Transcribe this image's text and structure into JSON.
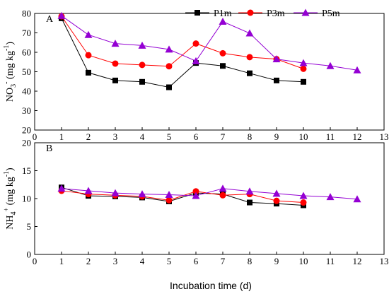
{
  "chart_data": [
    {
      "panel_label": "A",
      "type": "line",
      "ylabel": "NO3- (mg kg-1)",
      "ylabel_parts": {
        "base": "NO",
        "sub": "3",
        "sup": "-",
        "unit_start": " (mg kg",
        "unit_sup": "-1",
        "unit_end": ")"
      },
      "xlim": [
        0,
        13
      ],
      "ylim": [
        20,
        80
      ],
      "xticks": [
        0,
        1,
        2,
        3,
        4,
        5,
        6,
        7,
        8,
        9,
        10,
        11,
        12,
        13
      ],
      "yticks": [
        20,
        30,
        40,
        50,
        60,
        70,
        80
      ],
      "legend_position": "top-right",
      "series": [
        {
          "name": "P1m",
          "marker": "square",
          "color": "#000000",
          "x": [
            1,
            2,
            3,
            4,
            5,
            6,
            7,
            8,
            9,
            10
          ],
          "values": [
            77.5,
            49.5,
            45.5,
            44.8,
            42.0,
            54.5,
            53.0,
            49.2,
            45.5,
            44.8
          ]
        },
        {
          "name": "P3m",
          "marker": "circle",
          "color": "#ff0000",
          "x": [
            1,
            2,
            3,
            4,
            5,
            6,
            7,
            8,
            9,
            10
          ],
          "values": [
            78.5,
            58.5,
            54.2,
            53.5,
            52.8,
            64.5,
            59.5,
            57.5,
            56.5,
            51.5
          ]
        },
        {
          "name": "P5m",
          "marker": "triangle",
          "color": "#9400d3",
          "x": [
            1,
            2,
            3,
            4,
            5,
            6,
            7,
            8,
            9,
            10,
            11,
            12
          ],
          "values": [
            78.8,
            69.0,
            64.5,
            63.5,
            61.5,
            55.5,
            75.8,
            69.8,
            56.5,
            54.5,
            53.0,
            50.8
          ]
        }
      ]
    },
    {
      "panel_label": "B",
      "type": "line",
      "ylabel": "NH4+ (mg kg-1)",
      "ylabel_parts": {
        "base": "NH",
        "sub": "4",
        "sup": "+",
        "unit_start": " (mg kg",
        "unit_sup": "-1",
        "unit_end": ")"
      },
      "xlabel": "Incubation time (d)",
      "xlim": [
        0,
        13
      ],
      "ylim": [
        0,
        20
      ],
      "xticks": [
        0,
        1,
        2,
        3,
        4,
        5,
        6,
        7,
        8,
        9,
        10,
        11,
        12,
        13
      ],
      "yticks": [
        0,
        5,
        10,
        15,
        20
      ],
      "series": [
        {
          "name": "P1m",
          "marker": "square",
          "color": "#000000",
          "x": [
            1,
            2,
            3,
            4,
            5,
            6,
            7,
            8,
            9,
            10
          ],
          "values": [
            12.0,
            10.5,
            10.4,
            10.2,
            9.5,
            11.0,
            10.8,
            9.3,
            9.1,
            8.8
          ]
        },
        {
          "name": "P3m",
          "marker": "circle",
          "color": "#ff0000",
          "x": [
            1,
            2,
            3,
            4,
            5,
            6,
            7,
            8,
            9,
            10
          ],
          "values": [
            11.4,
            10.8,
            10.6,
            10.4,
            9.7,
            11.3,
            10.6,
            10.8,
            9.6,
            9.3
          ]
        },
        {
          "name": "P5m",
          "marker": "triangle",
          "color": "#9400d3",
          "x": [
            1,
            2,
            3,
            4,
            5,
            6,
            7,
            8,
            9,
            10,
            11,
            12
          ],
          "values": [
            11.8,
            11.4,
            11.0,
            10.8,
            10.7,
            10.5,
            11.8,
            11.3,
            10.9,
            10.5,
            10.3,
            9.9
          ]
        }
      ]
    }
  ]
}
